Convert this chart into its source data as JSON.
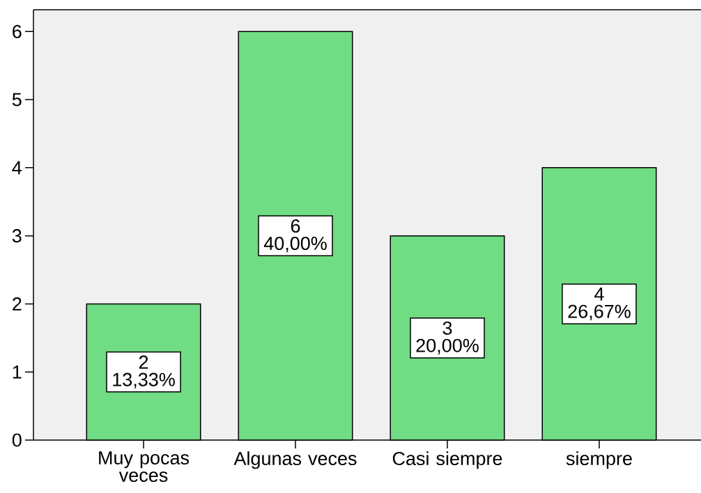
{
  "chart_data": {
    "type": "bar",
    "categories": [
      "Muy pocas veces",
      "Algunas veces",
      "Casi siempre",
      "siempre"
    ],
    "values": [
      2,
      6,
      3,
      4
    ],
    "color": "#70dc84",
    "value_labels": [
      "2 13,33%",
      "6 40,00%",
      "3 20,00%",
      "4 26,67%"
    ],
    "ylim": [
      0,
      6.32
    ],
    "yticks": [
      0,
      1,
      2,
      3,
      4,
      5,
      6
    ]
  }
}
